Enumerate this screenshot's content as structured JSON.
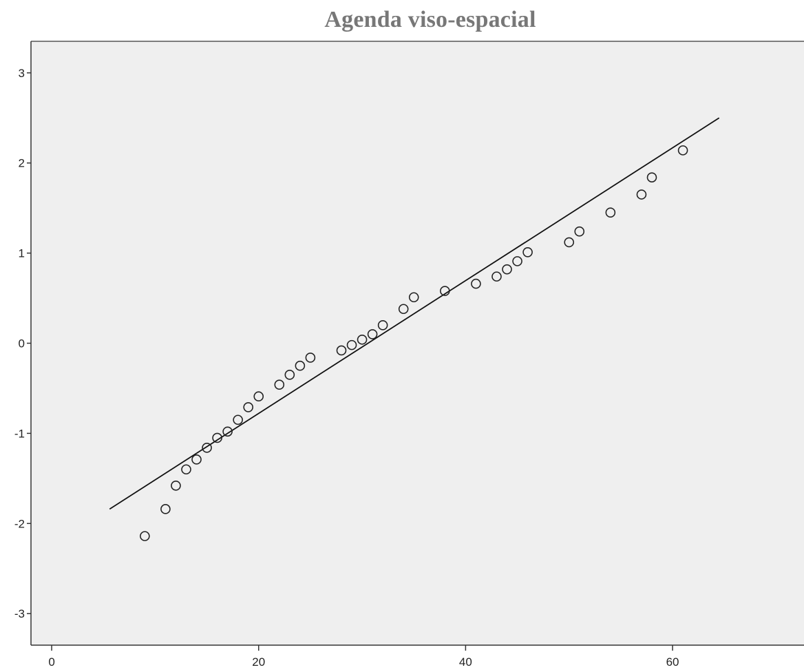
{
  "chart_data": {
    "type": "scatter",
    "title": "Agenda viso-espacial",
    "xlabel": "",
    "ylabel": "",
    "xlim": [
      -2,
      73.5
    ],
    "ylim": [
      -3.35,
      3.35
    ],
    "x_ticks": [
      0,
      20,
      40,
      60
    ],
    "x_tick_labels": [
      "0",
      "20",
      "40",
      "60"
    ],
    "y_ticks": [
      3,
      2,
      1,
      0,
      -1,
      -2,
      -3
    ],
    "y_tick_labels": [
      "3",
      "2",
      "1",
      "0",
      "-1",
      "-2",
      "-3"
    ],
    "grid": false,
    "plot_background": "#efefef",
    "marker": "open-circle",
    "points": [
      {
        "x": 9,
        "y": -2.14
      },
      {
        "x": 11,
        "y": -1.84
      },
      {
        "x": 12,
        "y": -1.58
      },
      {
        "x": 13,
        "y": -1.4
      },
      {
        "x": 14,
        "y": -1.29
      },
      {
        "x": 15,
        "y": -1.16
      },
      {
        "x": 16,
        "y": -1.05
      },
      {
        "x": 17,
        "y": -0.98
      },
      {
        "x": 18,
        "y": -0.85
      },
      {
        "x": 19,
        "y": -0.71
      },
      {
        "x": 20,
        "y": -0.59
      },
      {
        "x": 22,
        "y": -0.46
      },
      {
        "x": 23,
        "y": -0.35
      },
      {
        "x": 24,
        "y": -0.25
      },
      {
        "x": 25,
        "y": -0.16
      },
      {
        "x": 28,
        "y": -0.08
      },
      {
        "x": 29,
        "y": -0.02
      },
      {
        "x": 30,
        "y": 0.04
      },
      {
        "x": 31,
        "y": 0.1
      },
      {
        "x": 32,
        "y": 0.2
      },
      {
        "x": 34,
        "y": 0.38
      },
      {
        "x": 35,
        "y": 0.51
      },
      {
        "x": 38,
        "y": 0.58
      },
      {
        "x": 41,
        "y": 0.66
      },
      {
        "x": 43,
        "y": 0.74
      },
      {
        "x": 44,
        "y": 0.82
      },
      {
        "x": 45,
        "y": 0.91
      },
      {
        "x": 46,
        "y": 1.01
      },
      {
        "x": 50,
        "y": 1.12
      },
      {
        "x": 51,
        "y": 1.24
      },
      {
        "x": 54,
        "y": 1.45
      },
      {
        "x": 57,
        "y": 1.65
      },
      {
        "x": 58,
        "y": 1.84
      },
      {
        "x": 61,
        "y": 2.14
      }
    ],
    "reference_line": {
      "x1": 5.6,
      "y1": -1.84,
      "x2": 64.5,
      "y2": 2.5
    }
  }
}
